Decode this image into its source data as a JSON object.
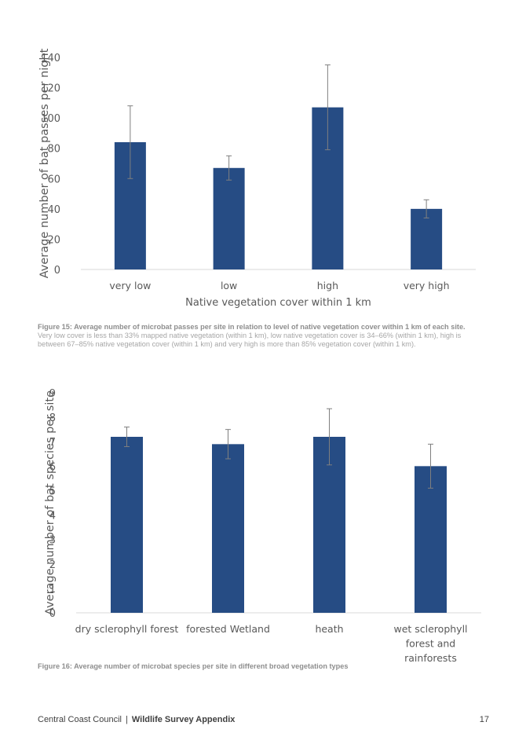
{
  "chart_data": [
    {
      "type": "bar",
      "title": "",
      "xlabel": "Native vegetation cover within 1 km",
      "ylabel": "Average number of bat passes per night",
      "categories": [
        "very low",
        "low",
        "high",
        "very high"
      ],
      "values": [
        84,
        67,
        107,
        40
      ],
      "error_low": [
        60,
        59,
        79,
        34
      ],
      "error_high": [
        108,
        75,
        135,
        46
      ],
      "ylim": [
        0,
        140
      ],
      "yticks": [
        "0",
        "20",
        "40",
        "60",
        "80",
        "100",
        "120",
        "140"
      ],
      "bar_color": "#264c84",
      "grid": false
    },
    {
      "type": "bar",
      "title": "",
      "xlabel": "",
      "ylabel": "Average number of bat species per site",
      "categories": [
        [
          "dry sclerophyll forest"
        ],
        [
          "forested Wetland"
        ],
        [
          "heath"
        ],
        [
          "wet sclerophyll",
          "forest and",
          "rainforests"
        ]
      ],
      "values": [
        7.2,
        6.9,
        7.2,
        6.0
      ],
      "error_low": [
        6.8,
        6.3,
        6.05,
        5.1
      ],
      "error_high": [
        7.6,
        7.5,
        8.35,
        6.9
      ],
      "ylim": [
        0,
        9
      ],
      "yticks": [
        "0",
        "1",
        "2",
        "3",
        "4",
        "5",
        "6",
        "7",
        "8",
        "9"
      ],
      "bar_color": "#264c84",
      "grid": false
    }
  ],
  "captions": {
    "fig15_lead": "Figure 15: Average number of microbat passes per site in relation to level of native vegetation cover within 1 km of each site.",
    "fig15_body": " Very low cover is less than 33% mapped native vegetation (within 1 km), low native vegetation cover is 34–66% (within 1 km), high is between 67–85% native vegetation cover (within 1 km) and very high is more than 85% vegetation cover (within 1 km).",
    "fig16": "Figure 16: Average number of microbat species per site in different broad vegetation types"
  },
  "footer": {
    "organisation": "Central Coast Council",
    "separator": "|",
    "document": "Wildlife Survey Appendix",
    "page_number": "17"
  },
  "colors": {
    "bar": "#264c84",
    "axis": "#d9d9d9",
    "text": "#595959",
    "caption": "#a6a6a6"
  }
}
